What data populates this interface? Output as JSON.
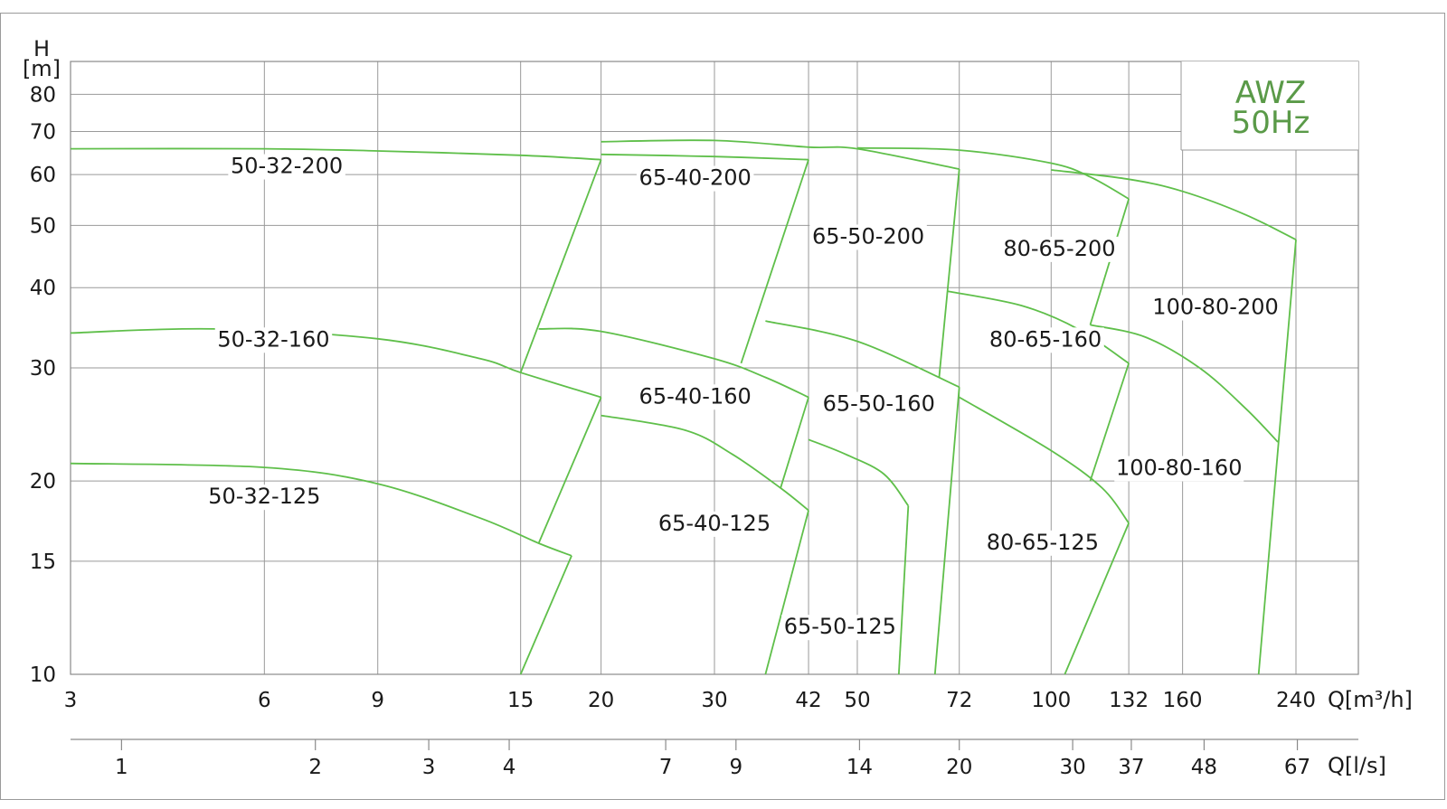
{
  "accent_color": "#5fbf4a",
  "brand_color": "#5a9a48",
  "chart_data": {
    "type": "line",
    "title": "AWZ",
    "subtitle": "50Hz",
    "ylabel_top": "H",
    "ylabel_unit": "[m]",
    "xlabel": "Q[m³/h]",
    "x2label": "Q[l/s]",
    "x_scale": "log",
    "y_scale": "log",
    "xlim": [
      3,
      300
    ],
    "ylim": [
      10,
      90
    ],
    "grid": true,
    "x_ticks": [
      3,
      6,
      9,
      15,
      20,
      30,
      42,
      50,
      72,
      100,
      132,
      160,
      240
    ],
    "x_tick_labels": [
      "3",
      "6",
      "9",
      "15",
      "20",
      "30",
      "42",
      "50",
      "72",
      "100",
      "132",
      "160",
      "240"
    ],
    "x2_ticks": [
      1,
      2,
      3,
      4,
      7,
      9,
      14,
      20,
      30,
      37,
      48,
      67
    ],
    "x2_tick_labels": [
      "1",
      "2",
      "3",
      "4",
      "7",
      "9",
      "14",
      "20",
      "30",
      "37",
      "48",
      "67"
    ],
    "y_ticks": [
      10,
      15,
      20,
      30,
      40,
      50,
      60,
      70,
      80
    ],
    "y_tick_labels": [
      "10",
      "15",
      "20",
      "30",
      "40",
      "50",
      "60",
      "70",
      "80"
    ],
    "series": [
      {
        "name": "50-32-200",
        "label_at": [
          6.5,
          60.5
        ],
        "points": [
          [
            3,
            65.8
          ],
          [
            6,
            65.8
          ],
          [
            9,
            65.3
          ],
          [
            15,
            64.3
          ],
          [
            20,
            63.3
          ]
        ]
      },
      {
        "name": "50-32-160",
        "label_at": [
          6.2,
          32.5
        ],
        "points": [
          [
            3,
            34
          ],
          [
            5,
            34.5
          ],
          [
            9,
            33.3
          ],
          [
            13,
            31
          ],
          [
            15,
            29.5
          ],
          [
            20,
            27
          ]
        ]
      },
      {
        "name": "50-32-125",
        "label_at": [
          6,
          18.5
        ],
        "points": [
          [
            3,
            21.3
          ],
          [
            6,
            21
          ],
          [
            9,
            19.8
          ],
          [
            13,
            17.5
          ],
          [
            16,
            16
          ],
          [
            18,
            15.3
          ]
        ]
      },
      {
        "name": "65-40-200",
        "label_at": [
          28,
          58
        ],
        "points": [
          [
            20,
            67.5
          ],
          [
            30,
            67.8
          ],
          [
            42,
            66.2
          ],
          [
            50,
            65.8
          ],
          [
            72,
            61.2
          ]
        ]
      },
      {
        "name": "65-40-160",
        "label_at": [
          28,
          26.5
        ],
        "points": [
          [
            16,
            34.5
          ],
          [
            20,
            34.2
          ],
          [
            30,
            31
          ],
          [
            36,
            29
          ],
          [
            42,
            27
          ]
        ]
      },
      {
        "name": "65-40-125",
        "label_at": [
          30,
          16.8
        ],
        "points": [
          [
            20,
            25.3
          ],
          [
            27,
            24
          ],
          [
            32,
            22
          ],
          [
            38,
            19.5
          ],
          [
            42,
            18
          ]
        ]
      },
      {
        "name": "65-50-200",
        "label_at": [
          52,
          47
        ],
        "points": [
          [
            20,
            64.5
          ],
          [
            30,
            64
          ],
          [
            42,
            63.3
          ]
        ]
      },
      {
        "name": "65-50-160",
        "label_at": [
          54,
          25.8
        ],
        "points": [
          [
            36,
            35.5
          ],
          [
            50,
            33
          ],
          [
            72,
            28
          ]
        ]
      },
      {
        "name": "65-50-125",
        "label_at": [
          47,
          11.6
        ],
        "points": [
          [
            42,
            23.2
          ],
          [
            48,
            22
          ],
          [
            55,
            20.5
          ],
          [
            60,
            18.3
          ]
        ]
      },
      {
        "name": "80-65-200",
        "label_at": [
          103,
          45
        ],
        "points": [
          [
            50,
            66
          ],
          [
            72,
            65.5
          ],
          [
            100,
            62.5
          ],
          [
            115,
            59.5
          ],
          [
            132,
            55
          ]
        ]
      },
      {
        "name": "80-65-160",
        "label_at": [
          98,
          32.5
        ],
        "points": [
          [
            69,
            39.5
          ],
          [
            90,
            37.5
          ],
          [
            110,
            34.5
          ],
          [
            132,
            30.5
          ]
        ]
      },
      {
        "name": "80-65-125",
        "label_at": [
          97,
          15.7
        ],
        "points": [
          [
            72,
            27
          ],
          [
            100,
            22.3
          ],
          [
            120,
            19.5
          ],
          [
            132,
            17.2
          ]
        ]
      },
      {
        "name": "100-80-200",
        "label_at": [
          180,
          36.5
        ],
        "points": [
          [
            100,
            61
          ],
          [
            132,
            59
          ],
          [
            160,
            56.5
          ],
          [
            200,
            52
          ],
          [
            240,
            47.5
          ]
        ]
      },
      {
        "name": "100-80-160",
        "label_at": [
          158,
          20.5
        ],
        "points": [
          [
            115,
            35
          ],
          [
            140,
            33.5
          ],
          [
            170,
            30
          ],
          [
            200,
            26
          ],
          [
            225,
            23
          ]
        ]
      }
    ],
    "boundaries": [
      [
        [
          15,
          10
        ],
        [
          18,
          15.3
        ]
      ],
      [
        [
          16,
          16
        ],
        [
          20,
          27
        ]
      ],
      [
        [
          15,
          29.5
        ],
        [
          20,
          63.3
        ]
      ],
      [
        [
          36,
          10
        ],
        [
          42,
          18
        ]
      ],
      [
        [
          38,
          19.5
        ],
        [
          42,
          27
        ]
      ],
      [
        [
          33,
          30.5
        ],
        [
          42,
          63.3
        ]
      ],
      [
        [
          58,
          10
        ],
        [
          60,
          18.3
        ]
      ],
      [
        [
          66,
          10
        ],
        [
          72,
          28
        ]
      ],
      [
        [
          67,
          29
        ],
        [
          72,
          61.2
        ]
      ],
      [
        [
          105,
          10
        ],
        [
          132,
          17.2
        ]
      ],
      [
        [
          115,
          20
        ],
        [
          132,
          30.5
        ]
      ],
      [
        [
          115,
          35
        ],
        [
          132,
          55
        ]
      ],
      [
        [
          210,
          10
        ],
        [
          240,
          47.5
        ]
      ]
    ]
  }
}
